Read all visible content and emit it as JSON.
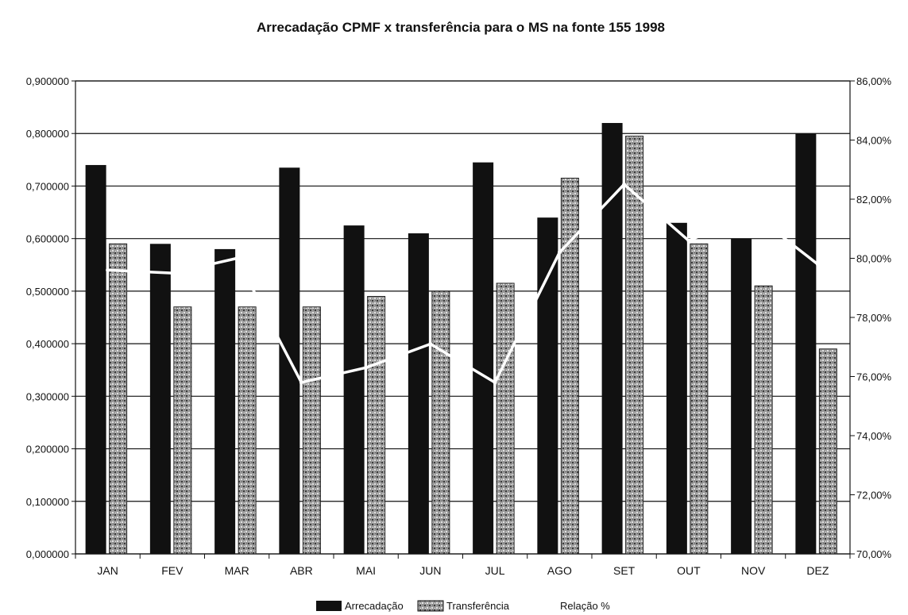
{
  "chart_data": {
    "type": "bar",
    "title": "Arrecadação CPMF x transferência para o MS na fonte 155 1998",
    "categories": [
      "JAN",
      "FEV",
      "MAR",
      "ABR",
      "MAI",
      "JUN",
      "JUL",
      "AGO",
      "SET",
      "OUT",
      "NOV",
      "DEZ"
    ],
    "series": [
      {
        "name": "Arrecadação",
        "axis": "left",
        "color": "#111111",
        "values": [
          0.74,
          0.59,
          0.58,
          0.735,
          0.625,
          0.61,
          0.745,
          0.64,
          0.82,
          0.63,
          0.6,
          0.8
        ]
      },
      {
        "name": "Transferência",
        "axis": "left",
        "color": "#8a8a8a",
        "values": [
          0.59,
          0.47,
          0.47,
          0.47,
          0.49,
          0.5,
          0.515,
          0.715,
          0.795,
          0.59,
          0.51,
          0.39
        ]
      },
      {
        "name": "Relação %",
        "axis": "right",
        "type": "line",
        "color": "#ffffff",
        "values": [
          79.6,
          79.5,
          80.0,
          75.8,
          76.3,
          77.1,
          75.8,
          80.2,
          82.5,
          80.6,
          81.5,
          79.8
        ]
      }
    ],
    "ylim_left": [
      0,
      0.9
    ],
    "ylim_right": [
      70,
      86
    ],
    "y_ticks_left": [
      "0,000000",
      "0,100000",
      "0,200000",
      "0,300000",
      "0,400000",
      "0,500000",
      "0,600000",
      "0,700000",
      "0,800000",
      "0,900000"
    ],
    "y_ticks_right": [
      "70,00%",
      "72,00%",
      "74,00%",
      "76,00%",
      "78,00%",
      "80,00%",
      "82,00%",
      "84,00%",
      "86,00%"
    ],
    "grid": true,
    "legend_position": "bottom"
  }
}
